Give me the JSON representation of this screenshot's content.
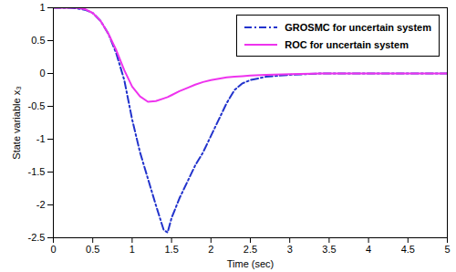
{
  "chart_data": {
    "type": "line",
    "x_label": "Time (sec)",
    "y_label": "State variable x₃",
    "x": [
      0,
      0.1,
      0.2,
      0.3,
      0.4,
      0.5,
      0.6,
      0.7,
      0.8,
      0.9,
      1.0,
      1.1,
      1.2,
      1.3,
      1.4,
      1.45,
      1.5,
      1.6,
      1.7,
      1.8,
      1.9,
      2.0,
      2.1,
      2.2,
      2.3,
      2.4,
      2.5,
      2.7,
      3.0,
      3.4,
      4,
      5
    ],
    "series": [
      {
        "name": "GROSMC for uncertain system",
        "color": "#2233cc",
        "line_style": "dashdot",
        "values": [
          1,
          1,
          1,
          0.99,
          0.97,
          0.92,
          0.8,
          0.6,
          0.3,
          -0.1,
          -0.7,
          -1.2,
          -1.6,
          -2.0,
          -2.38,
          -2.42,
          -2.2,
          -1.9,
          -1.65,
          -1.4,
          -1.2,
          -0.95,
          -0.7,
          -0.45,
          -0.25,
          -0.15,
          -0.1,
          -0.05,
          -0.02,
          0,
          0,
          0
        ]
      },
      {
        "name": "ROC for uncertain system",
        "color": "#ee33ee",
        "line_style": "solid",
        "values": [
          1,
          1,
          1,
          1,
          0.98,
          0.92,
          0.8,
          0.6,
          0.35,
          0.05,
          -0.2,
          -0.35,
          -0.43,
          -0.42,
          -0.38,
          -0.36,
          -0.33,
          -0.27,
          -0.22,
          -0.17,
          -0.13,
          -0.1,
          -0.08,
          -0.06,
          -0.05,
          -0.04,
          -0.03,
          -0.02,
          -0.01,
          0,
          0,
          0
        ]
      }
    ],
    "xlim": [
      0,
      5
    ],
    "xticks": [
      0,
      0.5,
      1,
      1.5,
      2,
      2.5,
      3,
      3.5,
      4,
      4.5,
      5
    ],
    "ylim": [
      -2.5,
      1
    ],
    "yticks": [
      -2.5,
      -2,
      -1.5,
      -1,
      -0.5,
      0,
      0.5,
      1
    ],
    "grid": false,
    "legend": "upper right"
  }
}
